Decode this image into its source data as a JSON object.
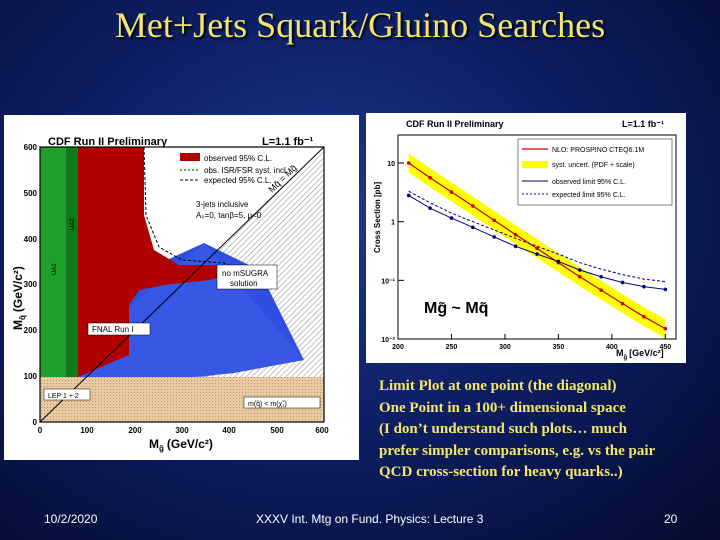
{
  "slide": {
    "title": "Met+Jets Squark/Gluino Searches",
    "notes": [
      "Limit Plot at one point (the diagonal)",
      "One Point in a 100+ dimensional space",
      "(I don’t understand such plots… much",
      "prefer simpler comparisons, e.g. vs the pair",
      "QCD cross-section for heavy quarks..)"
    ],
    "footer": {
      "date": "10/2/2020",
      "center": "XXXV Int. Mtg on Fund. Physics: Lecture 3",
      "page": "20"
    }
  },
  "left_plot": {
    "header": "CDF Run II Preliminary",
    "lumi": "L=1.1 fb⁻¹",
    "xlabel": "M",
    "xlabel_sub": "g̃",
    "xlabel_unit": "(GeV/c²)",
    "ylabel": "M",
    "ylabel_sub": "q̃",
    "ylabel_unit": "(GeV/c²)",
    "legend": [
      {
        "label": "observed 95% C.L.",
        "color": "#b00000"
      },
      {
        "label": "obs. ISR/FSR syst. incl.",
        "color": "#2a8a2a"
      },
      {
        "label": "expected 95% C.L.",
        "color": "#000000"
      }
    ],
    "annotation_lines": [
      "3-jets inclusive",
      "A₀=0, tanβ=5, μ<0"
    ],
    "diag_label": "Mq̃ = Mg̃",
    "region_labels": [
      "no mSUGRA",
      "solution"
    ],
    "fnal_label": "FNAL Run I",
    "lep_label": "LEP 1 + 2",
    "lep2_label": "m(q̃) < m(χ̃₁)",
    "ua_labels": [
      "UA2",
      "UA1"
    ],
    "xticks": [
      "0",
      "100",
      "200",
      "300",
      "400",
      "500",
      "600"
    ],
    "yticks": [
      "0",
      "100",
      "200",
      "300",
      "400",
      "500",
      "600"
    ]
  },
  "chart_data": {
    "type": "line",
    "title": "CDF Run II Preliminary",
    "lumi": "L=1.1 fb⁻¹",
    "xlabel": "M",
    "xlabel_sub": "g̃",
    "xlabel_unit": "[GeV/c²]",
    "ylabel": "Cross Section [pb]",
    "xlim": [
      200,
      460
    ],
    "ylim": [
      0.01,
      30
    ],
    "yscale": "log",
    "xticks": [
      "200",
      "250",
      "300",
      "350",
      "400",
      "450"
    ],
    "yticks": [
      "10⁻²",
      "10⁻¹",
      "1",
      "10"
    ],
    "ytick_values": [
      0.01,
      0.1,
      1,
      10
    ],
    "annotation": "Mg̃ ~ Mq̃",
    "series": [
      {
        "name": "NLO: PROSPINO CTEQ6.1M",
        "color": "#cc0000",
        "style": "solid",
        "x": [
          210,
          230,
          250,
          270,
          290,
          310,
          330,
          350,
          370,
          390,
          410,
          430,
          450
        ],
        "values": [
          10,
          5.6,
          3.2,
          1.85,
          1.05,
          0.6,
          0.35,
          0.2,
          0.115,
          0.068,
          0.04,
          0.024,
          0.015
        ]
      },
      {
        "name": "syst. uncert. (PDF + scale)",
        "color": "#ffff00",
        "style": "band",
        "x": [
          210,
          230,
          250,
          270,
          290,
          310,
          330,
          350,
          370,
          390,
          410,
          430,
          450
        ],
        "values": [
          10,
          5.6,
          3.2,
          1.85,
          1.05,
          0.6,
          0.35,
          0.2,
          0.115,
          0.068,
          0.04,
          0.024,
          0.015
        ]
      },
      {
        "name": "observed limit 95% C.L.",
        "color": "#000080",
        "style": "solid",
        "x": [
          210,
          230,
          250,
          270,
          290,
          310,
          330,
          350,
          370,
          390,
          410,
          430,
          450
        ],
        "values": [
          2.8,
          1.7,
          1.15,
          0.8,
          0.55,
          0.38,
          0.28,
          0.21,
          0.15,
          0.115,
          0.092,
          0.078,
          0.07
        ]
      },
      {
        "name": "expected limit 95% C.L.",
        "color": "#000080",
        "style": "dashed",
        "x": [
          210,
          230,
          250,
          270,
          290,
          310,
          330,
          350,
          370,
          390,
          410,
          430,
          450
        ],
        "values": [
          3.3,
          2.1,
          1.4,
          1.0,
          0.72,
          0.52,
          0.38,
          0.28,
          0.2,
          0.155,
          0.125,
          0.105,
          0.095
        ]
      }
    ]
  }
}
